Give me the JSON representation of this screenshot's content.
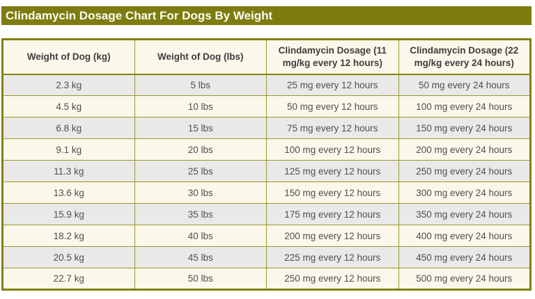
{
  "page": {
    "title_bar": "Clindamycin Dosage Chart For Dogs By Weight"
  },
  "colors": {
    "title_bar_bg": "#7d7c11",
    "title_text": "#fdfdf2",
    "outer_border": "#82810f",
    "inner_border": "#99982b",
    "header_bg": "#fbf7ea",
    "row_cream": "#fbf7ea",
    "row_gray": "#e9e9e9",
    "header_text": "#3e3e3e",
    "cell_text": "#4f4f4f"
  },
  "chart_data": {
    "type": "table",
    "title": "Clindamycin Dosage Chart For Dogs By Weight",
    "columns": [
      "Weight of Dog (kg)",
      "Weight of Dog (lbs)",
      "Clindamycin Dosage (11 mg/kg every 12 hours)",
      "Clindamycin Dosage (22 mg/kg every 24 hours)"
    ],
    "rows": [
      [
        "2.3 kg",
        "5 lbs",
        "25 mg every 12 hours",
        "50 mg every 24 hours"
      ],
      [
        "4.5 kg",
        "10 lbs",
        "50 mg every 12 hours",
        "100 mg every 24 hours"
      ],
      [
        "6.8 kg",
        "15 lbs",
        "75 mg every 12 hours",
        "150 mg every 24 hours"
      ],
      [
        "9.1 kg",
        "20 lbs",
        "100 mg every 12 hours",
        "200 mg every 24 hours"
      ],
      [
        "11.3 kg",
        "25 lbs",
        "125 mg every 12 hours",
        "250 mg every 24 hours"
      ],
      [
        "13.6 kg",
        "30 lbs",
        "150 mg every 12 hours",
        "300 mg every 24 hours"
      ],
      [
        "15.9 kg",
        "35 lbs",
        "175 mg every 12 hours",
        "350 mg every 24 hours"
      ],
      [
        "18.2 kg",
        "40 lbs",
        "200 mg every 12 hours",
        "400 mg every 24 hours"
      ],
      [
        "20.5 kg",
        "45 lbs",
        "225 mg every 12 hours",
        "450 mg every 24 hours"
      ],
      [
        "22.7 kg",
        "50 lbs",
        "250 mg every 12 hours",
        "500 mg every 24 hours"
      ]
    ],
    "layout": {
      "columns_equal_width": true,
      "text_align": "center",
      "row_striping": "odd rows gray, even rows cream, header cream"
    }
  }
}
